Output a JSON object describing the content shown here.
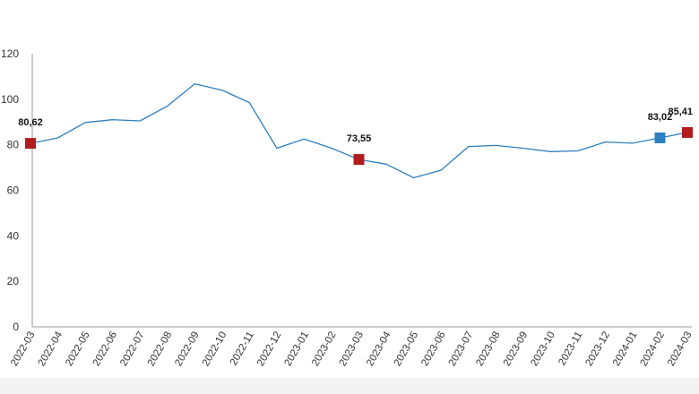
{
  "chart_data": {
    "type": "line",
    "title": "",
    "xlabel": "",
    "ylabel": "",
    "ylim": [
      0,
      120
    ],
    "yticks": [
      0,
      20,
      40,
      60,
      80,
      100,
      120
    ],
    "grid": false,
    "categories": [
      "2022-03",
      "2022-04",
      "2022-05",
      "2022-06",
      "2022-07",
      "2022-08",
      "2022-09",
      "2022-10",
      "2022-11",
      "2022-12",
      "2023-01",
      "2023-02",
      "2023-03",
      "2023-04",
      "2023-05",
      "2023-06",
      "2023-07",
      "2023-08",
      "2023-09",
      "2023-10",
      "2023-11",
      "2023-12",
      "2024-01",
      "2024-02",
      "2024-03"
    ],
    "series": [
      {
        "color": "#2e7fbf",
        "values": [
          80.62,
          83.0,
          89.8,
          91.0,
          90.5,
          97.0,
          106.8,
          104.0,
          98.5,
          78.5,
          82.5,
          78.5,
          73.55,
          71.5,
          65.5,
          68.8,
          79.2,
          79.7,
          78.5,
          77.0,
          77.3,
          81.2,
          80.7,
          83.02,
          85.41
        ]
      }
    ],
    "markers": [
      {
        "category": "2022-03",
        "value": 80.62,
        "label": "80,62",
        "color": "#b01c1c"
      },
      {
        "category": "2023-03",
        "value": 73.55,
        "label": "73,55",
        "color": "#b01c1c"
      },
      {
        "category": "2024-02",
        "value": 83.02,
        "label": "83,02",
        "color": "#2e7fbf"
      },
      {
        "category": "2024-03",
        "value": 85.41,
        "label": "85,41",
        "color": "#b01c1c"
      }
    ]
  }
}
